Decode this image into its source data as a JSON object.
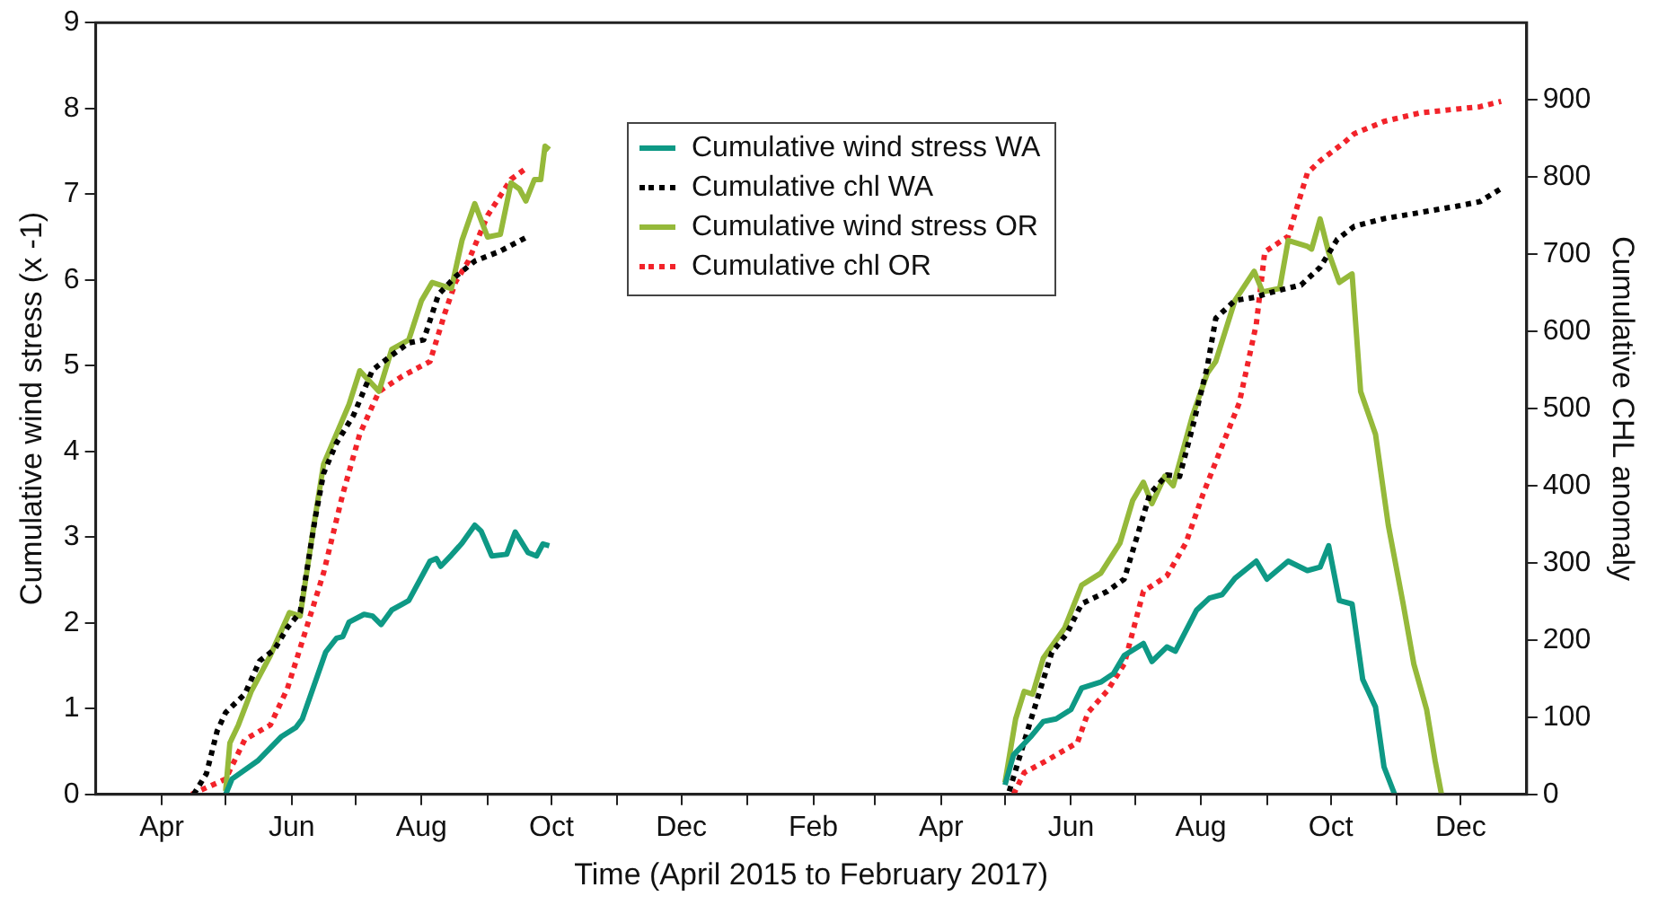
{
  "chart_data": {
    "type": "line",
    "xlabel": "Time (April 2015 to February 2017)",
    "ylabel": "Cumulative wind stress (x -1)",
    "y2label": "Cumulative CHL anomaly",
    "xlim": [
      "2015-03-01",
      "2017-01-01"
    ],
    "xticks": [
      {
        "value": "2015-04-01",
        "label": "Apr"
      },
      {
        "value": "2015-05-01",
        "label": null
      },
      {
        "value": "2015-06-01",
        "label": "Jun"
      },
      {
        "value": "2015-07-01",
        "label": null
      },
      {
        "value": "2015-08-01",
        "label": "Aug"
      },
      {
        "value": "2015-09-01",
        "label": null
      },
      {
        "value": "2015-10-01",
        "label": "Oct"
      },
      {
        "value": "2015-11-01",
        "label": null
      },
      {
        "value": "2015-12-01",
        "label": "Dec"
      },
      {
        "value": "2016-01-01",
        "label": null
      },
      {
        "value": "2016-02-01",
        "label": "Feb"
      },
      {
        "value": "2016-03-01",
        "label": null
      },
      {
        "value": "2016-04-01",
        "label": "Apr"
      },
      {
        "value": "2016-05-01",
        "label": null
      },
      {
        "value": "2016-06-01",
        "label": "Jun"
      },
      {
        "value": "2016-07-01",
        "label": null
      },
      {
        "value": "2016-08-01",
        "label": "Aug"
      },
      {
        "value": "2016-09-01",
        "label": null
      },
      {
        "value": "2016-10-01",
        "label": "Oct"
      },
      {
        "value": "2016-11-01",
        "label": null
      },
      {
        "value": "2016-12-01",
        "label": "Dec"
      }
    ],
    "ylim": [
      0,
      9
    ],
    "yticks": [
      0,
      1,
      2,
      3,
      4,
      5,
      6,
      7,
      8,
      9
    ],
    "y2lim": [
      0,
      1000
    ],
    "y2ticks": [
      0,
      100,
      200,
      300,
      400,
      500,
      600,
      700,
      800,
      900
    ],
    "grid": false,
    "legend": "top",
    "series": [
      {
        "name": "Cumulative wind stress WA",
        "color": "#0e9985",
        "line_style": "solid",
        "x": [
          "2015-05-01",
          "2015-05-04",
          "2015-05-16",
          "2015-05-27",
          "2015-06-03",
          "2015-06-06",
          "2015-06-17",
          "2015-06-22",
          "2015-06-25",
          "2015-06-28",
          "2015-07-05",
          "2015-07-09",
          "2015-07-13",
          "2015-07-18",
          "2015-07-23",
          "2015-07-26",
          "2015-08-05",
          "2015-08-08",
          "2015-08-10",
          "2015-08-15",
          "2015-08-20",
          "2015-08-26",
          "2015-08-29",
          "2015-09-03",
          "2015-09-10",
          "2015-09-14",
          "2015-09-20",
          "2015-09-24",
          "2015-09-27",
          "2015-09-30",
          "2016-01-01",
          "2016-05-01",
          "2016-05-05",
          "2016-05-13",
          "2016-05-19",
          "2016-05-25",
          "2016-06-01",
          "2016-06-06",
          "2016-06-15",
          "2016-06-21",
          "2016-06-26",
          "2016-07-05",
          "2016-07-09",
          "2016-07-16",
          "2016-07-20",
          "2016-07-30",
          "2016-08-05",
          "2016-08-11",
          "2016-08-17",
          "2016-08-27",
          "2016-09-01",
          "2016-09-11",
          "2016-09-20",
          "2016-09-26",
          "2016-09-30",
          "2016-10-05",
          "2016-10-11",
          "2016-10-16",
          "2016-10-22",
          "2016-10-26",
          "2016-10-31"
        ],
        "values": [
          0,
          0.18,
          0.39,
          0.67,
          0.78,
          0.88,
          1.66,
          1.82,
          1.84,
          2.01,
          2.1,
          2.08,
          1.98,
          2.15,
          2.22,
          2.26,
          2.72,
          2.75,
          2.66,
          2.79,
          2.93,
          3.14,
          3.07,
          2.78,
          2.8,
          3.06,
          2.82,
          2.78,
          2.92,
          2.9,
          null,
          0.11,
          0.46,
          0.67,
          0.85,
          0.88,
          0.99,
          1.24,
          1.31,
          1.41,
          1.62,
          1.76,
          1.55,
          1.72,
          1.67,
          2.15,
          2.29,
          2.33,
          2.52,
          2.72,
          2.51,
          2.72,
          2.61,
          2.65,
          2.9,
          2.26,
          2.22,
          1.34,
          1.02,
          0.32,
          0
        ]
      },
      {
        "name": "Cumulative chl WA",
        "color": "#000000",
        "line_style": "dotted",
        "axis": "y2",
        "x": [
          "2015-04-16",
          "2015-04-22",
          "2015-04-27",
          "2015-05-01",
          "2015-05-10",
          "2015-05-17",
          "2015-05-24",
          "2015-05-30",
          "2015-06-05",
          "2015-06-12",
          "2015-06-16",
          "2015-06-22",
          "2015-06-30",
          "2015-07-09",
          "2015-07-18",
          "2015-07-26",
          "2015-08-02",
          "2015-08-09",
          "2015-08-17",
          "2015-08-26",
          "2015-09-07",
          "2015-09-20",
          "2016-01-01",
          "2016-05-03",
          "2016-05-09",
          "2016-05-16",
          "2016-05-23",
          "2016-05-30",
          "2016-06-06",
          "2016-06-18",
          "2016-06-26",
          "2016-07-02",
          "2016-07-08",
          "2016-07-16",
          "2016-07-22",
          "2016-07-28",
          "2016-08-04",
          "2016-08-08",
          "2016-08-17",
          "2016-08-26",
          "2016-09-05",
          "2016-09-17",
          "2016-09-26",
          "2016-10-04",
          "2016-10-12",
          "2016-10-26",
          "2016-11-12",
          "2016-11-29",
          "2016-12-10",
          "2016-12-20"
        ],
        "values": [
          0,
          27,
          82,
          106,
          130,
          173,
          188,
          216,
          236,
          357,
          416,
          455,
          491,
          550,
          569,
          585,
          589,
          648,
          671,
          691,
          704,
          723,
          null,
          4,
          59,
          122,
          184,
          208,
          247,
          263,
          279,
          334,
          389,
          414,
          412,
          475,
          554,
          617,
          640,
          644,
          652,
          660,
          683,
          719,
          736,
          746,
          754,
          762,
          768,
          785
        ]
      },
      {
        "name": "Cumulative wind stress OR",
        "color": "#95b93a",
        "line_style": "solid",
        "x": [
          "2015-05-01",
          "2015-05-03",
          "2015-05-07",
          "2015-05-13",
          "2015-05-22",
          "2015-05-31",
          "2015-06-05",
          "2015-06-11",
          "2015-06-16",
          "2015-06-22",
          "2015-06-28",
          "2015-07-03",
          "2015-07-12",
          "2015-07-18",
          "2015-07-26",
          "2015-08-01",
          "2015-08-06",
          "2015-08-15",
          "2015-08-20",
          "2015-08-26",
          "2015-09-01",
          "2015-09-07",
          "2015-09-12",
          "2015-09-16",
          "2015-09-19",
          "2015-09-23",
          "2015-09-26",
          "2015-09-28",
          "2015-09-30",
          "2016-01-01",
          "2016-05-01",
          "2016-05-06",
          "2016-05-10",
          "2016-05-14",
          "2016-05-19",
          "2016-05-29",
          "2016-06-06",
          "2016-06-15",
          "2016-06-24",
          "2016-06-30",
          "2016-07-05",
          "2016-07-09",
          "2016-07-15",
          "2016-07-19",
          "2016-07-28",
          "2016-08-04",
          "2016-08-08",
          "2016-08-17",
          "2016-08-26",
          "2016-08-30",
          "2016-09-07",
          "2016-09-11",
          "2016-09-20",
          "2016-09-22",
          "2016-09-26",
          "2016-09-30",
          "2016-10-05",
          "2016-10-11",
          "2016-10-15",
          "2016-10-22",
          "2016-10-28",
          "2016-11-04",
          "2016-11-09",
          "2016-11-15",
          "2016-11-19",
          "2016-11-22"
        ],
        "values": [
          0.04,
          0.6,
          0.81,
          1.2,
          1.62,
          2.12,
          2.08,
          3.07,
          3.85,
          4.2,
          4.55,
          4.94,
          4.7,
          5.19,
          5.3,
          5.76,
          5.97,
          5.9,
          6.46,
          6.89,
          6.5,
          6.53,
          7.13,
          7.06,
          6.92,
          7.17,
          7.17,
          7.56,
          7.52,
          null,
          0.14,
          0.88,
          1.2,
          1.17,
          1.59,
          1.94,
          2.44,
          2.58,
          2.93,
          3.43,
          3.64,
          3.39,
          3.71,
          3.6,
          4.41,
          4.91,
          5.05,
          5.76,
          6.1,
          5.86,
          5.9,
          6.46,
          6.39,
          6.36,
          6.71,
          6.32,
          5.97,
          6.07,
          4.7,
          4.2,
          3.14,
          2.22,
          1.52,
          0.99,
          0.39,
          0
        ]
      },
      {
        "name": "Cumulative chl OR",
        "color": "#f2232a",
        "line_style": "dotted",
        "axis": "y2",
        "x": [
          "2015-04-15",
          "2015-05-01",
          "2015-05-10",
          "2015-05-22",
          "2015-05-30",
          "2015-06-08",
          "2015-06-16",
          "2015-06-25",
          "2015-07-03",
          "2015-07-12",
          "2015-07-23",
          "2015-08-05",
          "2015-08-12",
          "2015-08-17",
          "2015-08-23",
          "2015-09-01",
          "2015-09-12",
          "2015-09-20",
          "2016-01-01",
          "2016-05-05",
          "2016-05-10",
          "2016-05-20",
          "2016-06-04",
          "2016-06-09",
          "2016-06-18",
          "2016-06-26",
          "2016-07-05",
          "2016-07-16",
          "2016-07-25",
          "2016-08-02",
          "2016-08-11",
          "2016-08-19",
          "2016-08-27",
          "2016-08-31",
          "2016-09-11",
          "2016-09-20",
          "2016-09-26",
          "2016-10-07",
          "2016-10-12",
          "2016-10-26",
          "2016-11-12",
          "2016-11-29",
          "2016-12-10",
          "2016-12-20"
        ],
        "values": [
          0,
          20,
          71,
          90,
          137,
          216,
          287,
          389,
          467,
          522,
          542,
          561,
          624,
          664,
          691,
          750,
          797,
          813,
          null,
          0,
          28,
          43,
          67,
          106,
          134,
          169,
          263,
          283,
          326,
          389,
          452,
          507,
          609,
          703,
          723,
          805,
          821,
          844,
          856,
          872,
          883,
          888,
          891,
          898
        ]
      }
    ]
  }
}
